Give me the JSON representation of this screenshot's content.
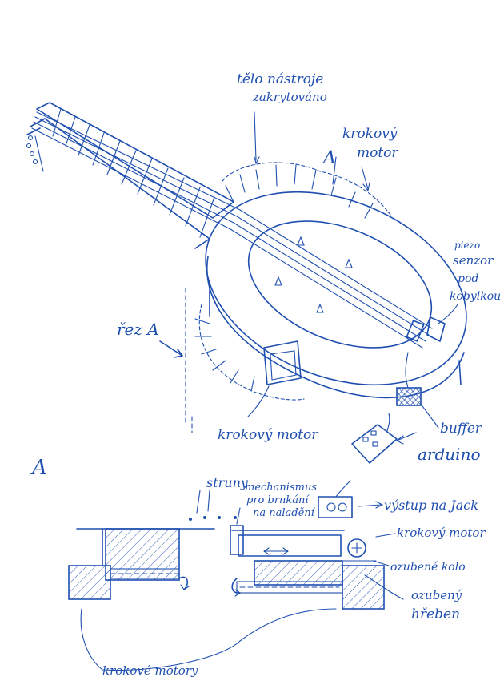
{
  "sketch": {
    "ink_color": "#1e4fb0",
    "labels": {
      "body_covered": "tělo nástroje zakrytováno",
      "stepper_top": "krokový motor",
      "section_mark_top": "A",
      "piezo": "piezo senzor pod kobylkou",
      "section_a": "řez A",
      "stepper_bottom": "krokový motor",
      "buffer": "buffer",
      "arduino": "arduino",
      "jack_output": "výstup na Jack",
      "detail_letter": "A",
      "strings": "struny",
      "mechanism": "mechanismus pro brnkání na naladění",
      "stepper_detail": "krokový motor",
      "pinion": "ozubené kolo",
      "rack": "ozubený hřeben",
      "stepper_motors": "krokové motory"
    }
  }
}
